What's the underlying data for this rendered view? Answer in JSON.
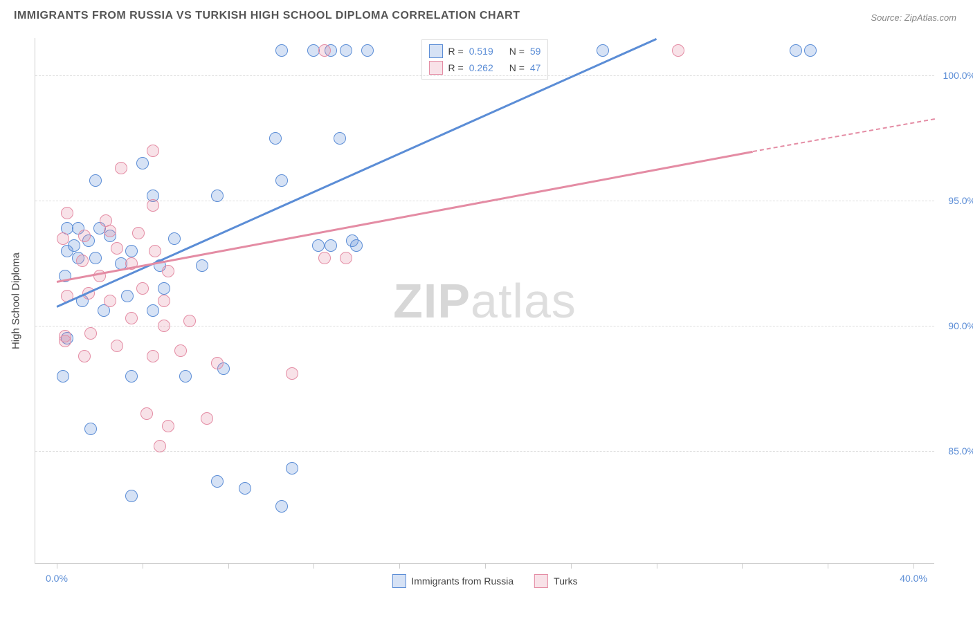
{
  "title": "IMMIGRANTS FROM RUSSIA VS TURKISH HIGH SCHOOL DIPLOMA CORRELATION CHART",
  "source": "Source: ZipAtlas.com",
  "ylabel": "High School Diploma",
  "watermark_bold": "ZIP",
  "watermark_light": "atlas",
  "chart": {
    "type": "scatter",
    "background_color": "#ffffff",
    "grid_color": "#dddddd",
    "axis_color": "#cccccc",
    "tick_label_color": "#5b8dd6",
    "tick_fontsize": 14,
    "title_fontsize": 16,
    "title_color": "#555555",
    "xlim": [
      -1,
      41
    ],
    "ylim": [
      80.5,
      101.5
    ],
    "yticks": [
      85.0,
      90.0,
      95.0,
      100.0
    ],
    "ytick_labels": [
      "85.0%",
      "90.0%",
      "95.0%",
      "100.0%"
    ],
    "xticks": [
      0,
      4,
      8,
      12,
      16,
      20,
      24,
      28,
      32,
      36,
      40
    ],
    "xtick_labels_shown": {
      "0": "0.0%",
      "40": "40.0%"
    },
    "marker_radius": 8,
    "marker_stroke_width": 1.5,
    "marker_fill_opacity": 0.25,
    "series": [
      {
        "name": "Immigrants from Russia",
        "color": "#5b8dd6",
        "fill": "rgba(91,141,214,0.25)",
        "stroke": "#5b8dd6",
        "R": "0.519",
        "N": "59",
        "trend": {
          "x1": 0,
          "y1": 90.8,
          "x2": 28,
          "y2": 101.5,
          "style": "solid"
        },
        "points": [
          [
            10.5,
            101
          ],
          [
            12.0,
            101
          ],
          [
            12.8,
            101
          ],
          [
            13.5,
            101
          ],
          [
            14.5,
            101
          ],
          [
            25.5,
            101
          ],
          [
            34.5,
            101
          ],
          [
            35.2,
            101
          ],
          [
            10.2,
            97.5
          ],
          [
            13.2,
            97.5
          ],
          [
            4.0,
            96.5
          ],
          [
            1.8,
            95.8
          ],
          [
            4.5,
            95.2
          ],
          [
            7.5,
            95.2
          ],
          [
            10.5,
            95.8
          ],
          [
            0.5,
            93.9
          ],
          [
            1.0,
            93.9
          ],
          [
            1.5,
            93.4
          ],
          [
            0.8,
            93.2
          ],
          [
            2.0,
            93.9
          ],
          [
            0.5,
            93.0
          ],
          [
            1.0,
            92.7
          ],
          [
            1.8,
            92.7
          ],
          [
            3.0,
            92.5
          ],
          [
            3.5,
            93.0
          ],
          [
            4.8,
            92.4
          ],
          [
            6.8,
            92.4
          ],
          [
            12.2,
            93.2
          ],
          [
            12.8,
            93.2
          ],
          [
            14.0,
            93.2
          ],
          [
            5.0,
            91.5
          ],
          [
            3.3,
            91.2
          ],
          [
            0.5,
            89.5
          ],
          [
            0.3,
            88.0
          ],
          [
            3.5,
            88.0
          ],
          [
            1.6,
            85.9
          ],
          [
            3.5,
            83.2
          ],
          [
            7.5,
            83.8
          ],
          [
            8.8,
            83.5
          ],
          [
            10.5,
            82.8
          ],
          [
            11.0,
            84.3
          ],
          [
            1.2,
            91.0
          ],
          [
            2.2,
            90.6
          ],
          [
            4.5,
            90.6
          ],
          [
            0.4,
            92.0
          ],
          [
            2.5,
            93.6
          ],
          [
            5.5,
            93.5
          ],
          [
            13.8,
            93.4
          ],
          [
            6.0,
            88.0
          ],
          [
            7.8,
            88.3
          ]
        ]
      },
      {
        "name": "Turks",
        "color": "#e48ca4",
        "fill": "rgba(228,140,164,0.25)",
        "stroke": "#e48ca4",
        "R": "0.262",
        "N": "47",
        "trend": {
          "x1": 0,
          "y1": 91.8,
          "x2": 32.5,
          "y2": 97.0,
          "style": "solid"
        },
        "trend_dashed": {
          "x1": 32.5,
          "y1": 97.0,
          "x2": 41,
          "y2": 98.3
        },
        "points": [
          [
            12.5,
            101
          ],
          [
            29.0,
            101
          ],
          [
            4.5,
            97.0
          ],
          [
            3.0,
            96.3
          ],
          [
            0.5,
            94.5
          ],
          [
            2.3,
            94.2
          ],
          [
            4.5,
            94.8
          ],
          [
            0.3,
            93.5
          ],
          [
            1.3,
            93.6
          ],
          [
            2.5,
            93.8
          ],
          [
            2.8,
            93.1
          ],
          [
            3.8,
            93.7
          ],
          [
            4.6,
            93.0
          ],
          [
            1.2,
            92.6
          ],
          [
            2.0,
            92.0
          ],
          [
            3.5,
            92.5
          ],
          [
            5.2,
            92.2
          ],
          [
            12.5,
            92.7
          ],
          [
            13.5,
            92.7
          ],
          [
            0.5,
            91.2
          ],
          [
            1.5,
            91.3
          ],
          [
            2.5,
            91.0
          ],
          [
            4.0,
            91.5
          ],
          [
            5.0,
            91.0
          ],
          [
            0.4,
            89.6
          ],
          [
            0.4,
            89.4
          ],
          [
            1.6,
            89.7
          ],
          [
            2.8,
            89.2
          ],
          [
            3.5,
            90.3
          ],
          [
            5.0,
            90.0
          ],
          [
            6.2,
            90.2
          ],
          [
            1.3,
            88.8
          ],
          [
            4.5,
            88.8
          ],
          [
            5.8,
            89.0
          ],
          [
            7.5,
            88.5
          ],
          [
            11.0,
            88.1
          ],
          [
            4.2,
            86.5
          ],
          [
            4.8,
            85.2
          ],
          [
            5.2,
            86.0
          ],
          [
            7.0,
            86.3
          ]
        ]
      }
    ]
  },
  "legend_top": {
    "r_label": "R =",
    "n_label": "N ="
  },
  "legend_bottom": [
    {
      "label": "Immigrants from Russia",
      "color": "#5b8dd6",
      "fill": "rgba(91,141,214,0.25)"
    },
    {
      "label": "Turks",
      "color": "#e48ca4",
      "fill": "rgba(228,140,164,0.25)"
    }
  ]
}
